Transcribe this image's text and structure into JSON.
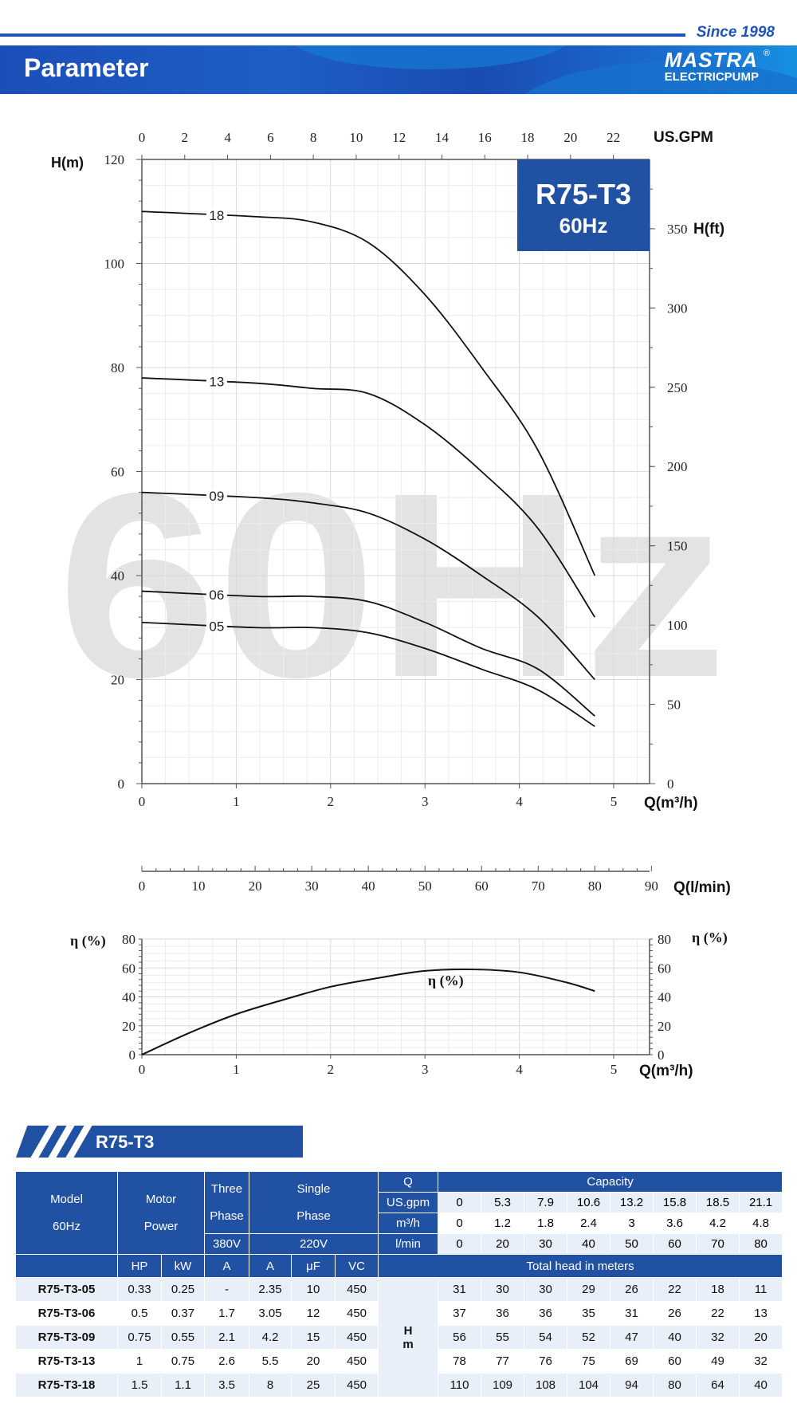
{
  "header": {
    "since": "Since 1998",
    "title": "Parameter",
    "logo_text": "MASTRA",
    "logo_sub": "ELECTRICPUMP",
    "logo_reg": "®"
  },
  "colors": {
    "brand_blue": "#2151a3",
    "watermark": "#e3e3e3",
    "curve": "#111111"
  },
  "chart_data": [
    {
      "type": "line",
      "title": "R75-T3",
      "subtitle": "60Hz",
      "watermark": "60Hz",
      "xlabel": "Q(m³/h)",
      "xlim": [
        0,
        5.4
      ],
      "xticks": [
        0,
        1,
        2,
        3,
        4,
        5
      ],
      "ylabel": "H(m)",
      "ylim": [
        0,
        120
      ],
      "yticks": [
        0,
        20,
        40,
        60,
        80,
        100,
        120
      ],
      "top_axis": {
        "label": "US.GPM",
        "ticks": [
          0,
          2,
          4,
          6,
          8,
          10,
          12,
          14,
          16,
          18,
          20,
          22
        ]
      },
      "right_axis": {
        "label": "H(ft)",
        "ticks": [
          0,
          50,
          100,
          150,
          200,
          250,
          300,
          350
        ]
      },
      "bottom_axis2": {
        "label": "Q(l/min)",
        "ticks": [
          0,
          10,
          20,
          30,
          40,
          50,
          60,
          70,
          80,
          90
        ]
      },
      "grid": true,
      "x": [
        0,
        1.2,
        1.8,
        2.4,
        3,
        3.6,
        4.2,
        4.8
      ],
      "series": [
        {
          "name": "05",
          "values": [
            31,
            30,
            30,
            29,
            26,
            22,
            18,
            11
          ]
        },
        {
          "name": "06",
          "values": [
            37,
            36,
            36,
            35,
            31,
            26,
            22,
            13
          ]
        },
        {
          "name": "09",
          "values": [
            56,
            55,
            54,
            52,
            47,
            40,
            32,
            20
          ]
        },
        {
          "name": "13",
          "values": [
            78,
            77,
            76,
            75,
            69,
            60,
            49,
            32
          ]
        },
        {
          "name": "18",
          "values": [
            110,
            109,
            108,
            104,
            94,
            80,
            64,
            40
          ]
        }
      ]
    },
    {
      "type": "line",
      "xlabel": "Q(m³/h)",
      "xlim": [
        0,
        5.4
      ],
      "xticks": [
        0,
        1,
        2,
        3,
        4,
        5
      ],
      "ylabel": "η (%)",
      "ylim": [
        0,
        80
      ],
      "yticks": [
        0,
        20,
        40,
        60,
        80
      ],
      "grid": true,
      "series": [
        {
          "name": "η (%)",
          "x": [
            0,
            0.5,
            1,
            1.5,
            2,
            2.5,
            3,
            3.5,
            4,
            4.5,
            4.8
          ],
          "values": [
            0,
            15,
            28,
            38,
            47,
            53,
            58,
            59,
            57,
            50,
            44
          ]
        }
      ]
    }
  ],
  "section": {
    "title": "R75-T3"
  },
  "table": {
    "model_header": [
      "Model",
      "60Hz"
    ],
    "motor_header": [
      "Motor",
      "Power"
    ],
    "three_header": [
      "Three",
      "Phase"
    ],
    "single_header": [
      "Single",
      "Phase"
    ],
    "q": "Q",
    "capacity": "Capacity",
    "v380": "380V",
    "v220": "220V",
    "units": {
      "gpm": "US.gpm",
      "m3h": "m³/h",
      "lmin": "l/min",
      "hp": "HP",
      "kw": "kW",
      "a3": "A",
      "a1": "A",
      "uf": "μF",
      "vc": "VC",
      "head": "Total head in meters",
      "h": "H",
      "m": "m"
    },
    "gpm": [
      "0",
      "5.3",
      "7.9",
      "10.6",
      "13.2",
      "15.8",
      "18.5",
      "21.1"
    ],
    "m3h": [
      "0",
      "1.2",
      "1.8",
      "2.4",
      "3",
      "3.6",
      "4.2",
      "4.8"
    ],
    "lmin": [
      "0",
      "20",
      "30",
      "40",
      "50",
      "60",
      "70",
      "80"
    ],
    "rows": [
      {
        "model": "R75-T3-05",
        "hp": "0.33",
        "kw": "0.25",
        "a3": "-",
        "a1": "2.35",
        "uf": "10",
        "vc": "450",
        "h": [
          "31",
          "30",
          "30",
          "29",
          "26",
          "22",
          "18",
          "11"
        ]
      },
      {
        "model": "R75-T3-06",
        "hp": "0.5",
        "kw": "0.37",
        "a3": "1.7",
        "a1": "3.05",
        "uf": "12",
        "vc": "450",
        "h": [
          "37",
          "36",
          "36",
          "35",
          "31",
          "26",
          "22",
          "13"
        ]
      },
      {
        "model": "R75-T3-09",
        "hp": "0.75",
        "kw": "0.55",
        "a3": "2.1",
        "a1": "4.2",
        "uf": "15",
        "vc": "450",
        "h": [
          "56",
          "55",
          "54",
          "52",
          "47",
          "40",
          "32",
          "20"
        ]
      },
      {
        "model": "R75-T3-13",
        "hp": "1",
        "kw": "0.75",
        "a3": "2.6",
        "a1": "5.5",
        "uf": "20",
        "vc": "450",
        "h": [
          "78",
          "77",
          "76",
          "75",
          "69",
          "60",
          "49",
          "32"
        ]
      },
      {
        "model": "R75-T3-18",
        "hp": "1.5",
        "kw": "1.1",
        "a3": "3.5",
        "a1": "8",
        "uf": "25",
        "vc": "450",
        "h": [
          "110",
          "109",
          "108",
          "104",
          "94",
          "80",
          "64",
          "40"
        ]
      }
    ]
  }
}
